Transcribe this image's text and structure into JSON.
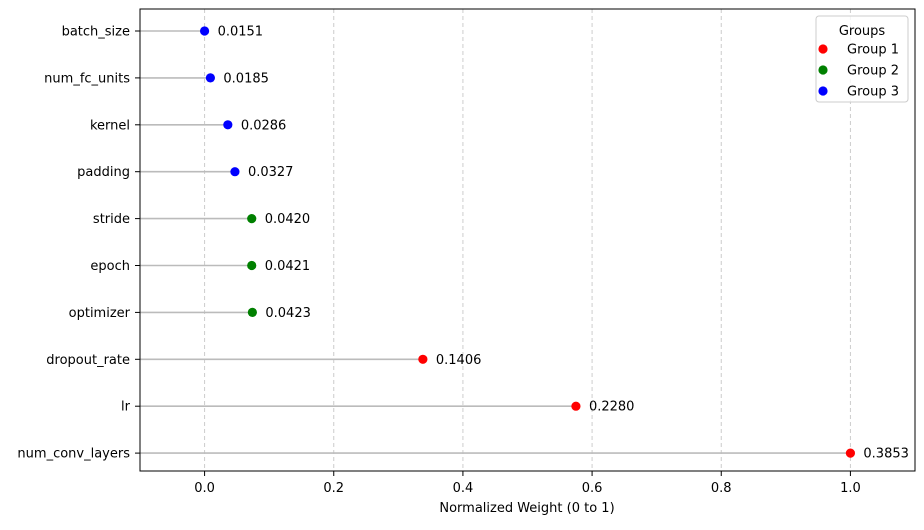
{
  "chart_data": {
    "type": "lollipop",
    "xlabel": "Normalized Weight (0 to 1)",
    "xlim": [
      -0.1,
      1.1
    ],
    "x_ticks": [
      0.0,
      0.2,
      0.4,
      0.6,
      0.8,
      1.0
    ],
    "x_tick_labels": [
      "0.0",
      "0.2",
      "0.4",
      "0.6",
      "0.8",
      "1.0"
    ],
    "grid": "vertical-dashed",
    "legend": {
      "title": "Groups",
      "placement": "top-right",
      "entries": [
        {
          "name": "Group 1",
          "color": "#ff0000"
        },
        {
          "name": "Group 2",
          "color": "#008000"
        },
        {
          "name": "Group 3",
          "color": "#0000ff"
        }
      ]
    },
    "stem_color": "#bbbbbb",
    "items": [
      {
        "label": "batch_size",
        "x": 0.0,
        "annotation": "0.0151",
        "group": 3
      },
      {
        "label": "num_fc_units",
        "x": 0.009,
        "annotation": "0.0185",
        "group": 3
      },
      {
        "label": "kernel",
        "x": 0.036,
        "annotation": "0.0286",
        "group": 3
      },
      {
        "label": "padding",
        "x": 0.047,
        "annotation": "0.0327",
        "group": 3
      },
      {
        "label": "stride",
        "x": 0.073,
        "annotation": "0.0420",
        "group": 2
      },
      {
        "label": "epoch",
        "x": 0.073,
        "annotation": "0.0421",
        "group": 2
      },
      {
        "label": "optimizer",
        "x": 0.074,
        "annotation": "0.0423",
        "group": 2
      },
      {
        "label": "dropout_rate",
        "x": 0.338,
        "annotation": "0.1406",
        "group": 1
      },
      {
        "label": "lr",
        "x": 0.575,
        "annotation": "0.2280",
        "group": 1
      },
      {
        "label": "num_conv_layers",
        "x": 1.0,
        "annotation": "0.3853",
        "group": 1
      }
    ]
  }
}
